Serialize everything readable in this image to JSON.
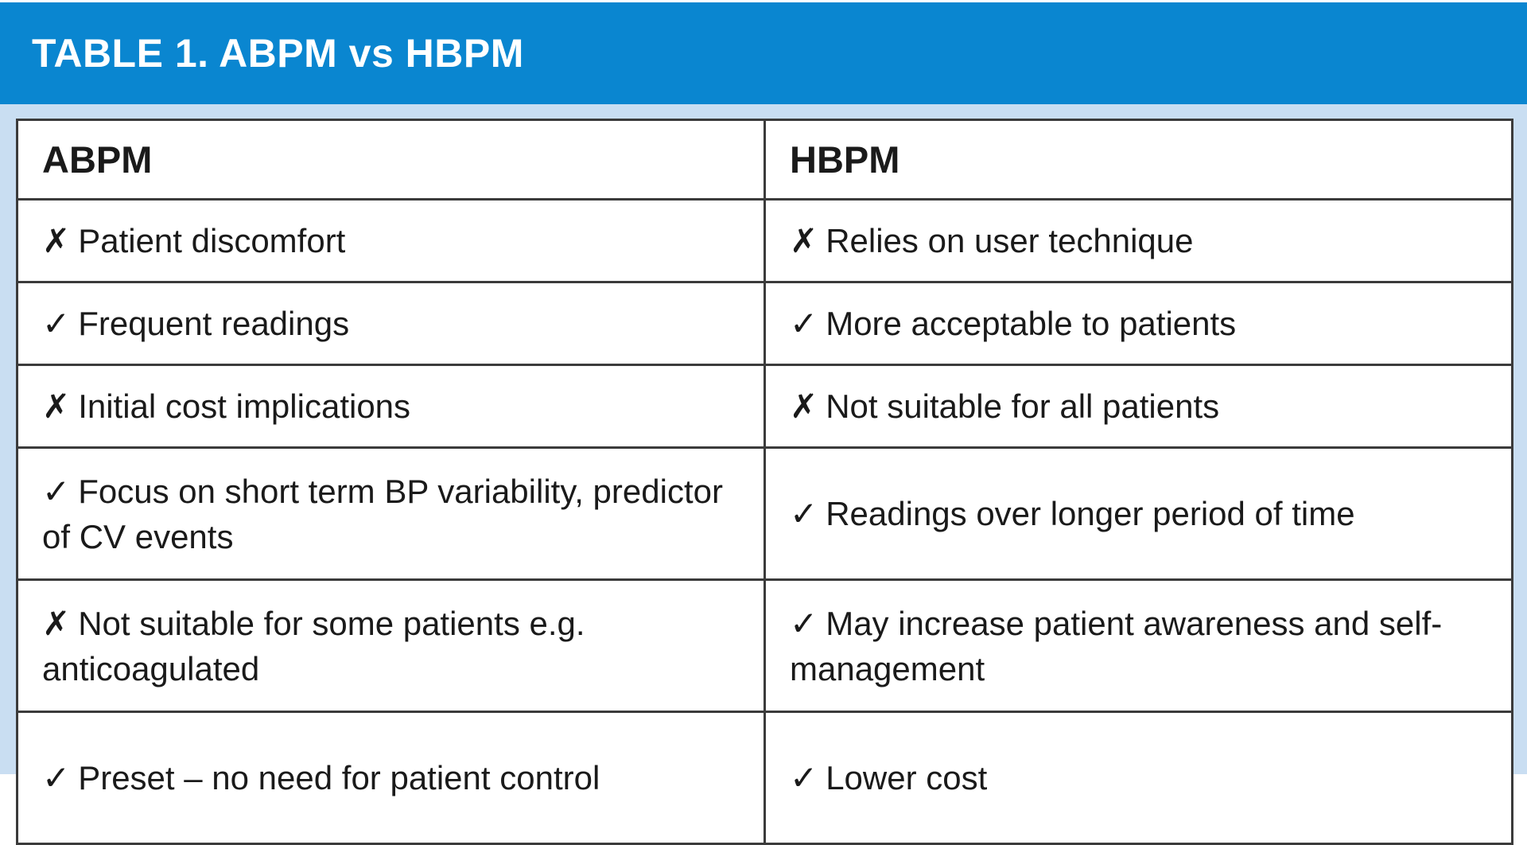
{
  "title": "TABLE 1. ABPM vs HBPM",
  "colors": {
    "header_bar": "#0a86d0",
    "page_background": "#c9def2",
    "table_border": "#3b3b3b",
    "title_text": "#ffffff",
    "body_text": "#1a1a1a"
  },
  "icons": {
    "cross": "✗",
    "check": "✓"
  },
  "table": {
    "columns": [
      "ABPM",
      "HBPM"
    ],
    "rows": [
      {
        "abpm": {
          "mark": "cross",
          "glyph": "✗",
          "text": "Patient discomfort"
        },
        "hbpm": {
          "mark": "cross",
          "glyph": "✗",
          "text": "Relies on user technique"
        }
      },
      {
        "abpm": {
          "mark": "check",
          "glyph": "✓",
          "text": "Frequent readings"
        },
        "hbpm": {
          "mark": "check",
          "glyph": "✓",
          "text": "More acceptable to patients"
        }
      },
      {
        "abpm": {
          "mark": "cross",
          "glyph": "✗",
          "text": "Initial cost implications"
        },
        "hbpm": {
          "mark": "cross",
          "glyph": "✗",
          "text": "Not suitable for all patients"
        }
      },
      {
        "abpm": {
          "mark": "check",
          "glyph": "✓",
          "text": "Focus on short term BP variability, predictor of CV events"
        },
        "hbpm": {
          "mark": "check",
          "glyph": "✓",
          "text": "Readings over longer period of time"
        }
      },
      {
        "abpm": {
          "mark": "cross",
          "glyph": "✗",
          "text": "Not suitable for some patients e.g. anticoagulated"
        },
        "hbpm": {
          "mark": "check",
          "glyph": "✓",
          "text": "May increase patient awareness and self-management"
        }
      },
      {
        "abpm": {
          "mark": "check",
          "glyph": "✓",
          "text": "Preset – no need for patient control"
        },
        "hbpm": {
          "mark": "check",
          "glyph": "✓",
          "text": "Lower cost"
        }
      }
    ]
  }
}
